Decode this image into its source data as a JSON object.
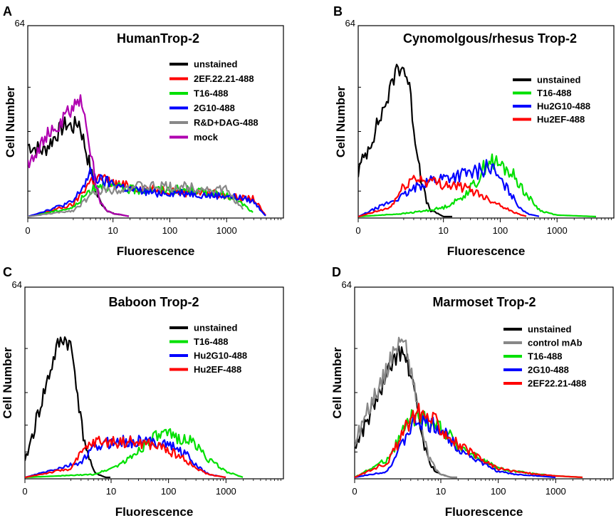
{
  "chart_data": [
    {
      "panel_letter": "A",
      "type": "line",
      "title": "HumanTrop-2",
      "xlabel": "Fluorescence",
      "ylabel": "Cell Number",
      "ymax_label": "64",
      "ylim": [
        0,
        64
      ],
      "xscale": "log",
      "xlim": [
        0,
        10000
      ],
      "xticks": [
        "0",
        "10",
        "100",
        "1000"
      ],
      "legend_position": "top-right",
      "series": [
        {
          "name": "unstained",
          "color": "#000000",
          "x": [
            0,
            0.5,
            1,
            1.5,
            2,
            2.5,
            3,
            4,
            5,
            6,
            8,
            10,
            15,
            20
          ],
          "y": [
            24,
            22,
            29,
            31,
            30,
            32,
            26,
            16,
            8,
            5,
            2,
            1,
            0.5,
            0
          ]
        },
        {
          "name": "2EF.22.21-488",
          "color": "#ff0000",
          "x": [
            0,
            2,
            4,
            6,
            10,
            20,
            50,
            100,
            200,
            500,
            1000,
            2000,
            3000,
            5000
          ],
          "y": [
            0,
            4,
            12,
            13,
            11,
            10,
            9,
            9,
            8,
            8,
            7,
            6,
            6,
            0
          ]
        },
        {
          "name": "T16-488",
          "color": "#00e000",
          "x": [
            0,
            2,
            4,
            6,
            10,
            20,
            50,
            100,
            200,
            500,
            1000,
            2000,
            3000
          ],
          "y": [
            0,
            3,
            9,
            11,
            10,
            9,
            9,
            9,
            9,
            8,
            7,
            4,
            1
          ]
        },
        {
          "name": "2G10-488",
          "color": "#0000ff",
          "x": [
            0,
            2,
            4,
            6,
            10,
            20,
            50,
            100,
            200,
            500,
            1000,
            2000,
            3000,
            5000
          ],
          "y": [
            0,
            5,
            14,
            12,
            11,
            9,
            8,
            8,
            8,
            7,
            7,
            6,
            5,
            0
          ]
        },
        {
          "name": "R&D+DAG-488",
          "color": "#888888",
          "x": [
            0,
            2,
            4,
            6,
            10,
            20,
            50,
            100,
            200,
            500,
            1000,
            2000
          ],
          "y": [
            0,
            2,
            7,
            9,
            9,
            10,
            10,
            10,
            10,
            9,
            9,
            2
          ]
        },
        {
          "name": "mock",
          "color": "#b000b0",
          "x": [
            0,
            0.5,
            1,
            1.5,
            2,
            2.5,
            3,
            4,
            5,
            6,
            8,
            10,
            15,
            20
          ],
          "y": [
            18,
            26,
            30,
            34,
            37,
            38,
            38,
            22,
            10,
            5,
            2,
            1,
            0.5,
            0
          ]
        }
      ]
    },
    {
      "panel_letter": "B",
      "type": "line",
      "title": "Cynomolgous/rhesus Trop-2",
      "xlabel": "Fluorescence",
      "ylabel": "Cell Number",
      "ymax_label": "64",
      "ylim": [
        0,
        64
      ],
      "xscale": "log",
      "xlim": [
        0,
        10000
      ],
      "xticks": [
        "0",
        "10",
        "100",
        "1000"
      ],
      "legend_position": "top-right",
      "series": [
        {
          "name": "unstained",
          "color": "#000000",
          "x": [
            0,
            0.5,
            1,
            1.5,
            2,
            2.5,
            3,
            4,
            5,
            6,
            8,
            10,
            15
          ],
          "y": [
            15,
            28,
            42,
            50,
            50,
            44,
            30,
            14,
            5,
            2,
            1,
            0,
            0
          ]
        },
        {
          "name": "T16-488",
          "color": "#00e000",
          "x": [
            0,
            2,
            5,
            10,
            20,
            40,
            60,
            80,
            100,
            150,
            200,
            300,
            500,
            1000,
            5000
          ],
          "y": [
            0,
            1,
            2,
            3,
            6,
            12,
            19,
            18,
            17,
            15,
            12,
            7,
            2,
            0.5,
            0
          ]
        },
        {
          "name": "Hu2G10-488",
          "color": "#0000ff",
          "x": [
            0,
            2,
            5,
            10,
            20,
            40,
            60,
            80,
            100,
            150,
            200,
            300,
            500
          ],
          "y": [
            0,
            7,
            12,
            13,
            14,
            15,
            17,
            15,
            12,
            8,
            4,
            1,
            0
          ]
        },
        {
          "name": "Hu2EF-488",
          "color": "#ff0000",
          "x": [
            0,
            1,
            2,
            3,
            5,
            10,
            20,
            40,
            60,
            100,
            150,
            200,
            300
          ],
          "y": [
            0,
            3,
            10,
            13,
            12,
            11,
            10,
            8,
            6,
            4,
            2,
            1,
            0
          ]
        }
      ]
    },
    {
      "panel_letter": "C",
      "type": "line",
      "title": "Baboon Trop-2",
      "xlabel": "Fluorescence",
      "ylabel": "Cell Number",
      "ymax_label": "64",
      "ylim": [
        0,
        64
      ],
      "xscale": "log",
      "xlim": [
        0,
        10000
      ],
      "xticks": [
        "0",
        "10",
        "100",
        "1000"
      ],
      "legend_position": "top-right",
      "series": [
        {
          "name": "unstained",
          "color": "#000000",
          "x": [
            0,
            0.5,
            1,
            1.5,
            2,
            2.5,
            3,
            4,
            5,
            6,
            8,
            10
          ],
          "y": [
            5,
            25,
            44,
            47,
            44,
            32,
            18,
            7,
            2,
            1,
            0,
            0
          ]
        },
        {
          "name": "T16-488",
          "color": "#00e000",
          "x": [
            0,
            5,
            10,
            20,
            50,
            80,
            100,
            200,
            300,
            500,
            1000,
            2000
          ],
          "y": [
            0,
            1,
            3,
            6,
            13,
            14,
            14,
            13,
            11,
            6,
            2,
            0
          ]
        },
        {
          "name": "Hu2G10-488",
          "color": "#0000ff",
          "x": [
            0,
            3,
            5,
            10,
            20,
            50,
            80,
            100,
            200,
            300,
            500,
            1000
          ],
          "y": [
            0,
            5,
            10,
            12,
            12,
            12,
            12,
            11,
            8,
            4,
            1,
            0
          ]
        },
        {
          "name": "Hu2EF-488",
          "color": "#ff0000",
          "x": [
            0,
            2,
            3,
            5,
            10,
            20,
            50,
            80,
            100,
            200,
            300,
            500,
            1000
          ],
          "y": [
            0,
            3,
            8,
            12,
            12,
            12,
            11,
            10,
            9,
            6,
            3,
            1,
            0
          ]
        }
      ]
    },
    {
      "panel_letter": "D",
      "type": "line",
      "title": "Marmoset Trop-2",
      "xlabel": "Fluorescence",
      "ylabel": "Cell Number",
      "ymax_label": "64",
      "ylim": [
        0,
        64
      ],
      "xscale": "log",
      "xlim": [
        0,
        10000
      ],
      "xticks": [
        "0",
        "10",
        "100",
        "1000"
      ],
      "legend_position": "top-right",
      "series": [
        {
          "name": "unstained",
          "color": "#000000",
          "x": [
            0,
            0.5,
            1,
            1.5,
            2,
            2.5,
            3,
            4,
            5,
            6,
            8,
            10,
            15,
            20
          ],
          "y": [
            10,
            22,
            34,
            40,
            42,
            40,
            34,
            22,
            12,
            6,
            2,
            1,
            0,
            0
          ]
        },
        {
          "name": "control mAb",
          "color": "#888888",
          "x": [
            0,
            0.5,
            1,
            1.5,
            2,
            2.5,
            3,
            4,
            5,
            6,
            8,
            10,
            15,
            20
          ],
          "y": [
            12,
            25,
            36,
            43,
            46,
            44,
            36,
            24,
            14,
            7,
            3,
            1,
            0,
            0
          ]
        },
        {
          "name": "T16-488",
          "color": "#00e000",
          "x": [
            0,
            1,
            2,
            3,
            4,
            5,
            8,
            10,
            20,
            50,
            100,
            200,
            500,
            1000,
            3000
          ],
          "y": [
            0,
            6,
            14,
            20,
            20,
            20,
            18,
            17,
            11,
            6,
            3,
            2,
            1,
            0.5,
            0
          ]
        },
        {
          "name": "2G10-488",
          "color": "#0000ff",
          "x": [
            0,
            1,
            2,
            3,
            4,
            5,
            8,
            10,
            20,
            50,
            100,
            200,
            500,
            1000
          ],
          "y": [
            0,
            2,
            10,
            17,
            19,
            18,
            17,
            16,
            10,
            5,
            2,
            1,
            0.5,
            0
          ]
        },
        {
          "name": "2EF22.21-488",
          "color": "#ff0000",
          "x": [
            0,
            1,
            2,
            3,
            4,
            5,
            8,
            10,
            20,
            50,
            100,
            200,
            500,
            1000,
            3000
          ],
          "y": [
            0,
            5,
            13,
            20,
            22,
            21,
            19,
            17,
            11,
            6,
            3,
            2,
            1,
            0.5,
            0
          ]
        }
      ]
    }
  ]
}
